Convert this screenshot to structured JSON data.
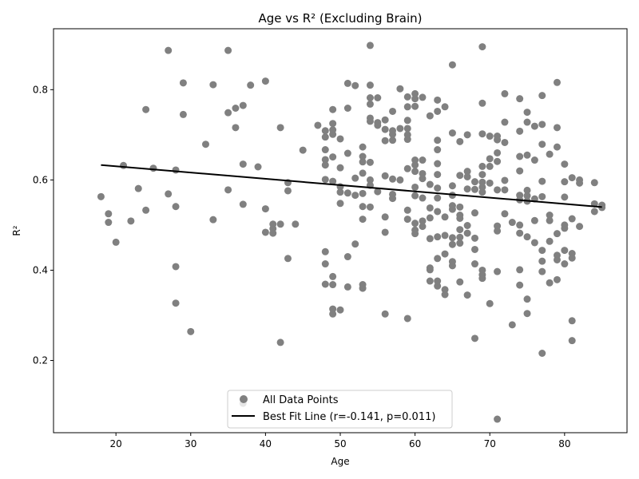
{
  "chart_data": {
    "type": "scatter",
    "title": "Age vs R² (Excluding Brain)",
    "xlabel": "Age",
    "ylabel": "R²",
    "xlim": [
      11.65,
      88.35
    ],
    "ylim": [
      0.04,
      0.935
    ],
    "xticks": [
      20,
      30,
      40,
      50,
      60,
      70,
      80
    ],
    "yticks": [
      0.2,
      0.4,
      0.6,
      0.8
    ],
    "grid": false,
    "legend_position": "lower-center",
    "point_color": "#808080",
    "line_color": "#000000",
    "series": [
      {
        "name": "All Data Points",
        "kind": "scatter",
        "points": [
          [
            18,
            0.563
          ],
          [
            19,
            0.525
          ],
          [
            19,
            0.506
          ],
          [
            20,
            0.462
          ],
          [
            21,
            0.632
          ],
          [
            22,
            0.509
          ],
          [
            23,
            0.581
          ],
          [
            24,
            0.756
          ],
          [
            24,
            0.533
          ],
          [
            25,
            0.626
          ],
          [
            27,
            0.887
          ],
          [
            27,
            0.569
          ],
          [
            28,
            0.622
          ],
          [
            28,
            0.541
          ],
          [
            28,
            0.408
          ],
          [
            28,
            0.327
          ],
          [
            29,
            0.815
          ],
          [
            29,
            0.745
          ],
          [
            30,
            0.264
          ],
          [
            32,
            0.679
          ],
          [
            33,
            0.811
          ],
          [
            33,
            0.512
          ],
          [
            35,
            0.887
          ],
          [
            35,
            0.749
          ],
          [
            35,
            0.578
          ],
          [
            36,
            0.759
          ],
          [
            36,
            0.716
          ],
          [
            37,
            0.765
          ],
          [
            37,
            0.635
          ],
          [
            37,
            0.546
          ],
          [
            37,
            0.105
          ],
          [
            38,
            0.81
          ],
          [
            39,
            0.629
          ],
          [
            40,
            0.819
          ],
          [
            40,
            0.536
          ],
          [
            40,
            0.484
          ],
          [
            41,
            0.502
          ],
          [
            41,
            0.492
          ],
          [
            41,
            0.482
          ],
          [
            42,
            0.716
          ],
          [
            42,
            0.502
          ],
          [
            42,
            0.24
          ],
          [
            43,
            0.594
          ],
          [
            43,
            0.576
          ],
          [
            43,
            0.426
          ],
          [
            44,
            0.502
          ],
          [
            45,
            0.666
          ],
          [
            47,
            0.721
          ],
          [
            48,
            0.709
          ],
          [
            48,
            0.695
          ],
          [
            48,
            0.667
          ],
          [
            48,
            0.645
          ],
          [
            48,
            0.633
          ],
          [
            48,
            0.601
          ],
          [
            48,
            0.441
          ],
          [
            48,
            0.414
          ],
          [
            48,
            0.369
          ],
          [
            49,
            0.756
          ],
          [
            49,
            0.725
          ],
          [
            49,
            0.711
          ],
          [
            49,
            0.701
          ],
          [
            49,
            0.651
          ],
          [
            49,
            0.597
          ],
          [
            49,
            0.386
          ],
          [
            49,
            0.368
          ],
          [
            49,
            0.314
          ],
          [
            49,
            0.303
          ],
          [
            50,
            0.691
          ],
          [
            50,
            0.627
          ],
          [
            50,
            0.585
          ],
          [
            50,
            0.573
          ],
          [
            50,
            0.548
          ],
          [
            50,
            0.312
          ],
          [
            51,
            0.814
          ],
          [
            51,
            0.759
          ],
          [
            51,
            0.659
          ],
          [
            51,
            0.571
          ],
          [
            51,
            0.43
          ],
          [
            51,
            0.363
          ],
          [
            52,
            0.809
          ],
          [
            52,
            0.604
          ],
          [
            52,
            0.566
          ],
          [
            52,
            0.458
          ],
          [
            53,
            0.673
          ],
          [
            53,
            0.652
          ],
          [
            53,
            0.64
          ],
          [
            53,
            0.615
          ],
          [
            53,
            0.57
          ],
          [
            53,
            0.541
          ],
          [
            53,
            0.513
          ],
          [
            53,
            0.368
          ],
          [
            53,
            0.36
          ],
          [
            54,
            0.898
          ],
          [
            54,
            0.81
          ],
          [
            54,
            0.782
          ],
          [
            54,
            0.768
          ],
          [
            54,
            0.737
          ],
          [
            54,
            0.73
          ],
          [
            54,
            0.639
          ],
          [
            54,
            0.6
          ],
          [
            54,
            0.588
          ],
          [
            54,
            0.54
          ],
          [
            55,
            0.782
          ],
          [
            55,
            0.727
          ],
          [
            55,
            0.721
          ],
          [
            55,
            0.574
          ],
          [
            56,
            0.733
          ],
          [
            56,
            0.712
          ],
          [
            56,
            0.687
          ],
          [
            56,
            0.609
          ],
          [
            56,
            0.518
          ],
          [
            56,
            0.484
          ],
          [
            56,
            0.303
          ],
          [
            57,
            0.752
          ],
          [
            57,
            0.709
          ],
          [
            57,
            0.701
          ],
          [
            57,
            0.688
          ],
          [
            57,
            0.602
          ],
          [
            57,
            0.568
          ],
          [
            57,
            0.559
          ],
          [
            58,
            0.802
          ],
          [
            58,
            0.714
          ],
          [
            58,
            0.6
          ],
          [
            59,
            0.784
          ],
          [
            59,
            0.762
          ],
          [
            59,
            0.732
          ],
          [
            59,
            0.714
          ],
          [
            59,
            0.7
          ],
          [
            59,
            0.69
          ],
          [
            59,
            0.625
          ],
          [
            59,
            0.533
          ],
          [
            59,
            0.513
          ],
          [
            59,
            0.293
          ],
          [
            60,
            0.791
          ],
          [
            60,
            0.78
          ],
          [
            60,
            0.763
          ],
          [
            60,
            0.644
          ],
          [
            60,
            0.633
          ],
          [
            60,
            0.619
          ],
          [
            60,
            0.584
          ],
          [
            60,
            0.565
          ],
          [
            60,
            0.504
          ],
          [
            60,
            0.489
          ],
          [
            60,
            0.481
          ],
          [
            61,
            0.783
          ],
          [
            61,
            0.644
          ],
          [
            61,
            0.614
          ],
          [
            61,
            0.603
          ],
          [
            61,
            0.56
          ],
          [
            61,
            0.509
          ],
          [
            61,
            0.497
          ],
          [
            62,
            0.742
          ],
          [
            62,
            0.59
          ],
          [
            62,
            0.538
          ],
          [
            62,
            0.516
          ],
          [
            62,
            0.47
          ],
          [
            62,
            0.405
          ],
          [
            62,
            0.401
          ],
          [
            62,
            0.376
          ],
          [
            63,
            0.777
          ],
          [
            63,
            0.752
          ],
          [
            63,
            0.688
          ],
          [
            63,
            0.667
          ],
          [
            63,
            0.636
          ],
          [
            63,
            0.612
          ],
          [
            63,
            0.582
          ],
          [
            63,
            0.56
          ],
          [
            63,
            0.53
          ],
          [
            63,
            0.474
          ],
          [
            63,
            0.426
          ],
          [
            63,
            0.376
          ],
          [
            63,
            0.365
          ],
          [
            64,
            0.762
          ],
          [
            64,
            0.518
          ],
          [
            64,
            0.477
          ],
          [
            64,
            0.436
          ],
          [
            64,
            0.357
          ],
          [
            64,
            0.346
          ],
          [
            65,
            0.855
          ],
          [
            65,
            0.704
          ],
          [
            65,
            0.587
          ],
          [
            65,
            0.566
          ],
          [
            65,
            0.543
          ],
          [
            65,
            0.535
          ],
          [
            65,
            0.472
          ],
          [
            65,
            0.457
          ],
          [
            65,
            0.419
          ],
          [
            65,
            0.41
          ],
          [
            66,
            0.685
          ],
          [
            66,
            0.61
          ],
          [
            66,
            0.54
          ],
          [
            66,
            0.522
          ],
          [
            66,
            0.515
          ],
          [
            66,
            0.49
          ],
          [
            66,
            0.473
          ],
          [
            66,
            0.46
          ],
          [
            66,
            0.374
          ],
          [
            67,
            0.7
          ],
          [
            67,
            0.619
          ],
          [
            67,
            0.607
          ],
          [
            67,
            0.58
          ],
          [
            67,
            0.499
          ],
          [
            67,
            0.482
          ],
          [
            67,
            0.345
          ],
          [
            68,
            0.596
          ],
          [
            68,
            0.579
          ],
          [
            68,
            0.527
          ],
          [
            68,
            0.471
          ],
          [
            68,
            0.446
          ],
          [
            68,
            0.414
          ],
          [
            68,
            0.249
          ],
          [
            69,
            0.895
          ],
          [
            69,
            0.77
          ],
          [
            69,
            0.702
          ],
          [
            69,
            0.63
          ],
          [
            69,
            0.612
          ],
          [
            69,
            0.595
          ],
          [
            69,
            0.584
          ],
          [
            69,
            0.573
          ],
          [
            69,
            0.4
          ],
          [
            69,
            0.39
          ],
          [
            69,
            0.382
          ],
          [
            70,
            0.697
          ],
          [
            70,
            0.647
          ],
          [
            70,
            0.63
          ],
          [
            70,
            0.593
          ],
          [
            70,
            0.326
          ],
          [
            71,
            0.697
          ],
          [
            71,
            0.689
          ],
          [
            71,
            0.66
          ],
          [
            71,
            0.641
          ],
          [
            71,
            0.578
          ],
          [
            71,
            0.498
          ],
          [
            71,
            0.487
          ],
          [
            71,
            0.397
          ],
          [
            71,
            0.07
          ],
          [
            72,
            0.791
          ],
          [
            72,
            0.728
          ],
          [
            72,
            0.683
          ],
          [
            72,
            0.599
          ],
          [
            72,
            0.578
          ],
          [
            72,
            0.525
          ],
          [
            73,
            0.506
          ],
          [
            73,
            0.279
          ],
          [
            74,
            0.78
          ],
          [
            74,
            0.708
          ],
          [
            74,
            0.652
          ],
          [
            74,
            0.62
          ],
          [
            74,
            0.566
          ],
          [
            74,
            0.556
          ],
          [
            74,
            0.5
          ],
          [
            74,
            0.482
          ],
          [
            74,
            0.401
          ],
          [
            74,
            0.367
          ],
          [
            75,
            0.75
          ],
          [
            75,
            0.728
          ],
          [
            75,
            0.655
          ],
          [
            75,
            0.577
          ],
          [
            75,
            0.565
          ],
          [
            75,
            0.553
          ],
          [
            75,
            0.474
          ],
          [
            75,
            0.336
          ],
          [
            75,
            0.304
          ],
          [
            76,
            0.719
          ],
          [
            76,
            0.644
          ],
          [
            76,
            0.558
          ],
          [
            76,
            0.51
          ],
          [
            76,
            0.461
          ],
          [
            77,
            0.787
          ],
          [
            77,
            0.723
          ],
          [
            77,
            0.679
          ],
          [
            77,
            0.597
          ],
          [
            77,
            0.563
          ],
          [
            77,
            0.444
          ],
          [
            77,
            0.42
          ],
          [
            77,
            0.397
          ],
          [
            77,
            0.216
          ],
          [
            78,
            0.657
          ],
          [
            78,
            0.522
          ],
          [
            78,
            0.51
          ],
          [
            78,
            0.464
          ],
          [
            78,
            0.372
          ],
          [
            79,
            0.816
          ],
          [
            79,
            0.716
          ],
          [
            79,
            0.673
          ],
          [
            79,
            0.481
          ],
          [
            79,
            0.433
          ],
          [
            79,
            0.423
          ],
          [
            79,
            0.379
          ],
          [
            80,
            0.635
          ],
          [
            80,
            0.596
          ],
          [
            80,
            0.562
          ],
          [
            80,
            0.5
          ],
          [
            80,
            0.493
          ],
          [
            80,
            0.444
          ],
          [
            80,
            0.414
          ],
          [
            81,
            0.605
          ],
          [
            81,
            0.514
          ],
          [
            81,
            0.437
          ],
          [
            81,
            0.427
          ],
          [
            81,
            0.288
          ],
          [
            81,
            0.244
          ],
          [
            82,
            0.6
          ],
          [
            82,
            0.593
          ],
          [
            82,
            0.497
          ],
          [
            84,
            0.594
          ],
          [
            84,
            0.547
          ],
          [
            84,
            0.53
          ],
          [
            85,
            0.544
          ],
          [
            85,
            0.539
          ]
        ]
      },
      {
        "name": "Best Fit Line (r=-0.141, p=0.011)",
        "kind": "line",
        "points": [
          [
            18,
            0.633
          ],
          [
            85,
            0.54
          ]
        ]
      }
    ]
  }
}
